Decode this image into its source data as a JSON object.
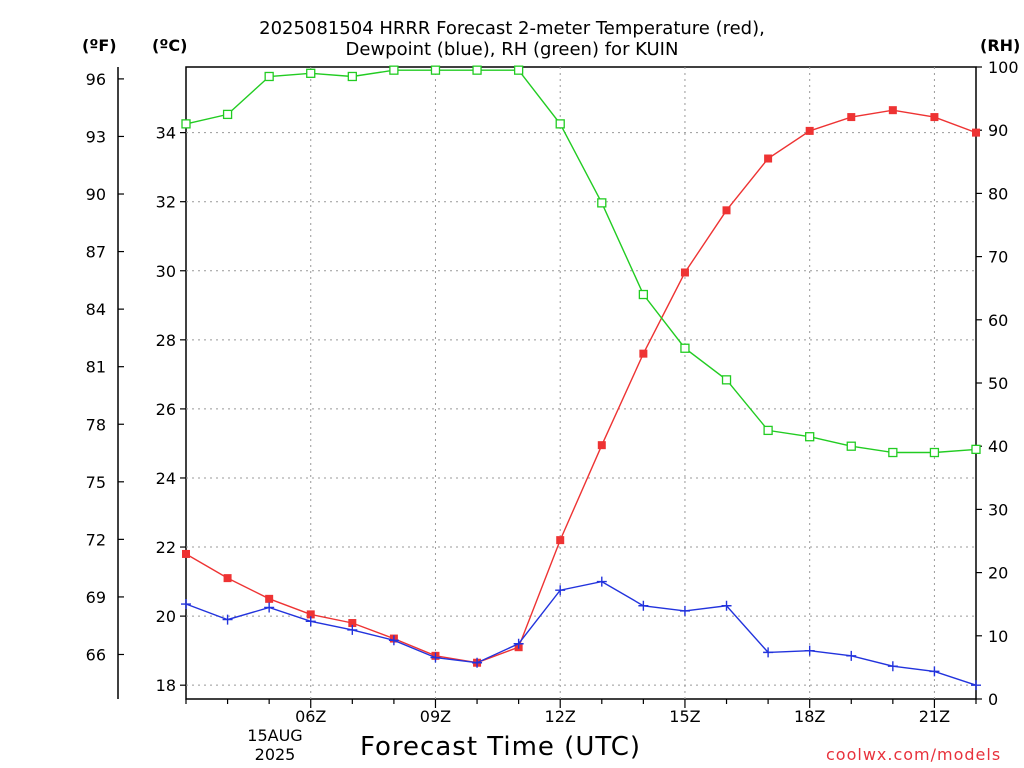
{
  "title_line1": "2025081504 HRRR Forecast 2-meter Temperature (red),",
  "title_line2": "Dewpoint (blue), RH (green) for KUIN",
  "unit_f": "(ºF)",
  "unit_c": "(ºC)",
  "unit_rh": "(RH)",
  "xlabel": "Forecast Time (UTC)",
  "date_line1": "15AUG",
  "date_line2": "2025",
  "credit": "coolwx.com/models",
  "colors": {
    "temperature": "#ee3333",
    "dewpoint": "#2233dd",
    "rh": "#22cc22",
    "grid": "#999999",
    "credit": "#e8323c"
  },
  "chart_data": {
    "type": "line",
    "x": [
      "03Z",
      "04Z",
      "05Z",
      "06Z",
      "07Z",
      "08Z",
      "09Z",
      "10Z",
      "11Z",
      "12Z",
      "13Z",
      "14Z",
      "15Z",
      "16Z",
      "17Z",
      "18Z",
      "19Z",
      "20Z",
      "21Z",
      "22Z"
    ],
    "x_tick_labels": [
      "06Z",
      "09Z",
      "12Z",
      "15Z",
      "18Z",
      "21Z"
    ],
    "y_left_c": {
      "range": [
        17.6,
        35.9
      ],
      "ticks": [
        18,
        20,
        22,
        24,
        26,
        28,
        30,
        32,
        34
      ]
    },
    "y_left_f": {
      "ticks": [
        66,
        69,
        72,
        75,
        78,
        81,
        84,
        87,
        90,
        93,
        96
      ]
    },
    "y_right_rh": {
      "range": [
        0,
        100
      ],
      "ticks": [
        0,
        10,
        20,
        30,
        40,
        50,
        60,
        70,
        80,
        90,
        100
      ]
    },
    "grid": true,
    "series": [
      {
        "name": "Temperature",
        "axis": "c",
        "marker": "filled-square",
        "values": [
          21.8,
          21.1,
          20.5,
          20.05,
          19.8,
          19.35,
          18.85,
          18.65,
          19.1,
          22.2,
          24.95,
          27.6,
          29.95,
          31.75,
          33.25,
          34.05,
          34.45,
          34.65,
          34.45,
          34.0
        ]
      },
      {
        "name": "Dewpoint",
        "axis": "c",
        "marker": "plus",
        "values": [
          20.35,
          19.9,
          20.25,
          19.85,
          19.6,
          19.3,
          18.8,
          18.65,
          19.2,
          20.75,
          21.0,
          20.3,
          20.15,
          20.3,
          18.95,
          19.0,
          18.85,
          18.55,
          18.4,
          18.0
        ]
      },
      {
        "name": "RH",
        "axis": "rh",
        "marker": "open-square",
        "values": [
          91,
          92.5,
          98.5,
          99,
          98.5,
          99.5,
          99.5,
          99.5,
          99.5,
          91,
          78.5,
          64,
          55.5,
          50.5,
          42.5,
          41.5,
          40,
          39,
          39,
          39.5
        ]
      }
    ]
  }
}
